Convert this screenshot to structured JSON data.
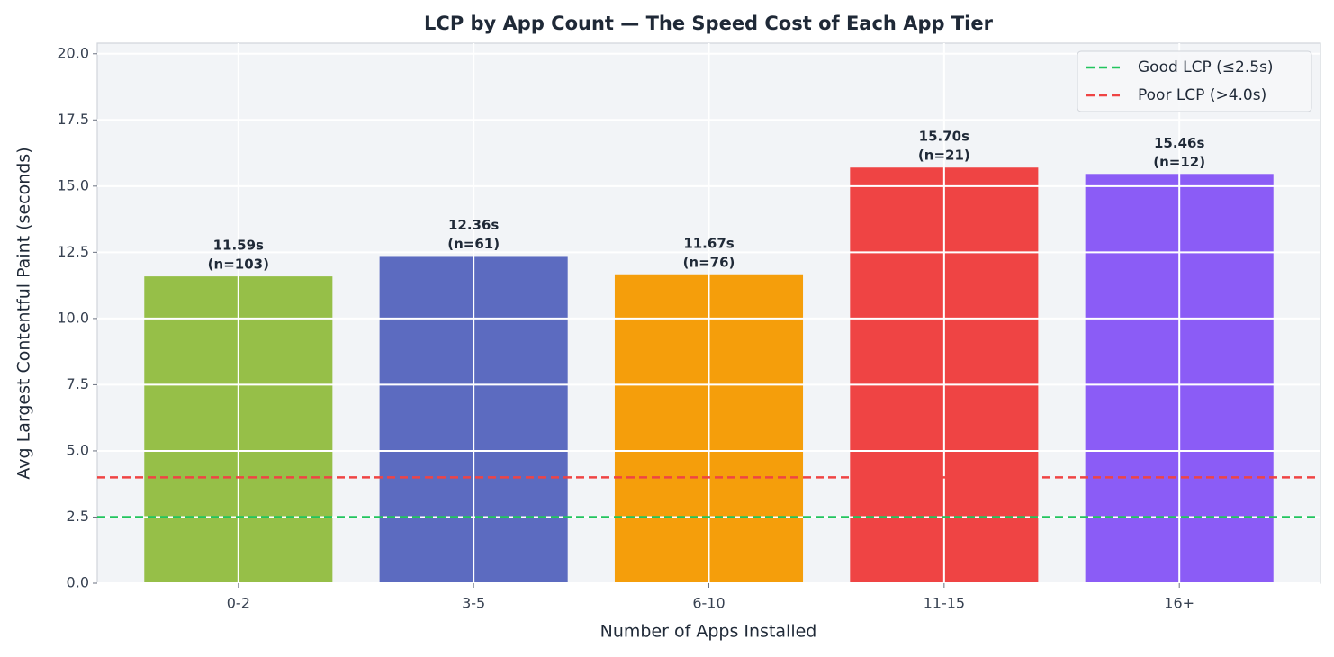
{
  "chart_data": {
    "type": "bar",
    "title": "LCP by App Count — The Speed Cost of Each App Tier",
    "xlabel": "Number of Apps Installed",
    "ylabel": "Avg Largest Contentful Paint (seconds)",
    "categories": [
      "0-2",
      "3-5",
      "6-10",
      "11-15",
      "16+"
    ],
    "values": [
      11.59,
      12.36,
      11.67,
      15.7,
      15.46
    ],
    "value_labels": [
      "11.59s",
      "12.36s",
      "11.67s",
      "15.70s",
      "15.46s"
    ],
    "sample_labels": [
      "(n=103)",
      "(n=61)",
      "(n=76)",
      "(n=21)",
      "(n=12)"
    ],
    "colors": [
      "#96bf48",
      "#5c6bc0",
      "#f59e0b",
      "#ef4444",
      "#8b5cf6"
    ],
    "ylim": [
      0,
      20.4
    ],
    "yticks": [
      {
        "value": 0,
        "label": "0.0"
      },
      2.5,
      {
        "value": 5,
        "label": "5.0"
      },
      7.5,
      {
        "value": 10,
        "label": "10.0"
      },
      12.5,
      {
        "value": 15,
        "label": "15.0"
      },
      17.5,
      {
        "value": 20,
        "label": "20.0"
      }
    ],
    "reference_lines": [
      {
        "name": "Good LCP (≤2.5s)",
        "value": 2.5,
        "color": "#22c55e"
      },
      {
        "name": "Poor LCP (>4.0s)",
        "value": 4.0,
        "color": "#ef4444"
      }
    ],
    "grid": true,
    "legend": "upper right"
  }
}
